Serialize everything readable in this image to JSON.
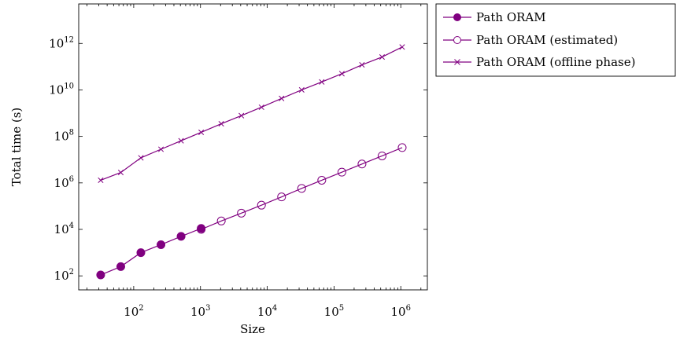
{
  "chart_data": {
    "type": "line",
    "xlabel": "Size",
    "ylabel": "Total time (s)",
    "x_scale": "log",
    "y_scale": "log",
    "xlim": [
      15,
      2500000
    ],
    "ylim": [
      25,
      50000000000000
    ],
    "x_ticks": [
      {
        "value": 100,
        "base": "10",
        "exp": "2"
      },
      {
        "value": 1000,
        "base": "10",
        "exp": "3"
      },
      {
        "value": 10000,
        "base": "10",
        "exp": "4"
      },
      {
        "value": 100000,
        "base": "10",
        "exp": "5"
      },
      {
        "value": 1000000,
        "base": "10",
        "exp": "6"
      }
    ],
    "y_ticks": [
      {
        "value": 100,
        "base": "10",
        "exp": "2"
      },
      {
        "value": 10000,
        "base": "10",
        "exp": "4"
      },
      {
        "value": 1000000,
        "base": "10",
        "exp": "6"
      },
      {
        "value": 100000000,
        "base": "10",
        "exp": "8"
      },
      {
        "value": 10000000000,
        "base": "10",
        "exp": "10"
      },
      {
        "value": 1000000000000,
        "base": "10",
        "exp": "12"
      }
    ],
    "grid": false,
    "legend_position": "outside-top-right",
    "color": "#800080",
    "series": [
      {
        "name": "Path ORAM",
        "marker": "filled-circle",
        "x": [
          32,
          64,
          128,
          256,
          512,
          1024
        ],
        "y": [
          110,
          250,
          1000,
          2200,
          5000,
          11000
        ]
      },
      {
        "name": "Path ORAM (estimated)",
        "marker": "open-circle",
        "x": [
          1024,
          2048,
          4096,
          8192,
          16384,
          32768,
          65536,
          131072,
          262144,
          524288,
          1048576
        ],
        "y": [
          10000,
          23000,
          50000,
          110000,
          250000,
          580000,
          1300000,
          2900000,
          6500000,
          14500000,
          33000000
        ]
      },
      {
        "name": "Path ORAM (offline phase)",
        "marker": "cross",
        "x": [
          32,
          64,
          128,
          256,
          512,
          1024,
          2048,
          4096,
          8192,
          16384,
          32768,
          65536,
          131072,
          262144,
          524288,
          1048576
        ],
        "y": [
          1300000,
          2800000,
          12000000,
          28000000,
          65000000,
          150000000,
          350000000,
          780000000,
          1800000000,
          4300000000,
          10000000000,
          22000000000,
          50000000000,
          120000000000,
          260000000000,
          700000000000
        ]
      }
    ]
  }
}
